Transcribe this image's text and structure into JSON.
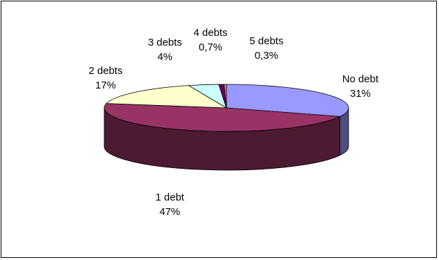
{
  "chart_data": {
    "type": "pie",
    "title": "",
    "three_d": true,
    "slices": [
      {
        "category": "No debt",
        "value": 31,
        "value_label": "31%",
        "color": "#9999ff"
      },
      {
        "category": "1 debt",
        "value": 47,
        "value_label": "47%",
        "color": "#993366"
      },
      {
        "category": "2 debts",
        "value": 17,
        "value_label": "17%",
        "color": "#ffffcc"
      },
      {
        "category": "3 debts",
        "value": 4,
        "value_label": "4%",
        "color": "#ccffff"
      },
      {
        "category": "4 debts",
        "value": 0.7,
        "value_label": "0,7%",
        "color": "#660066"
      },
      {
        "category": "5 debts",
        "value": 0.3,
        "value_label": "0,3%",
        "color": "#ff8080"
      }
    ]
  }
}
